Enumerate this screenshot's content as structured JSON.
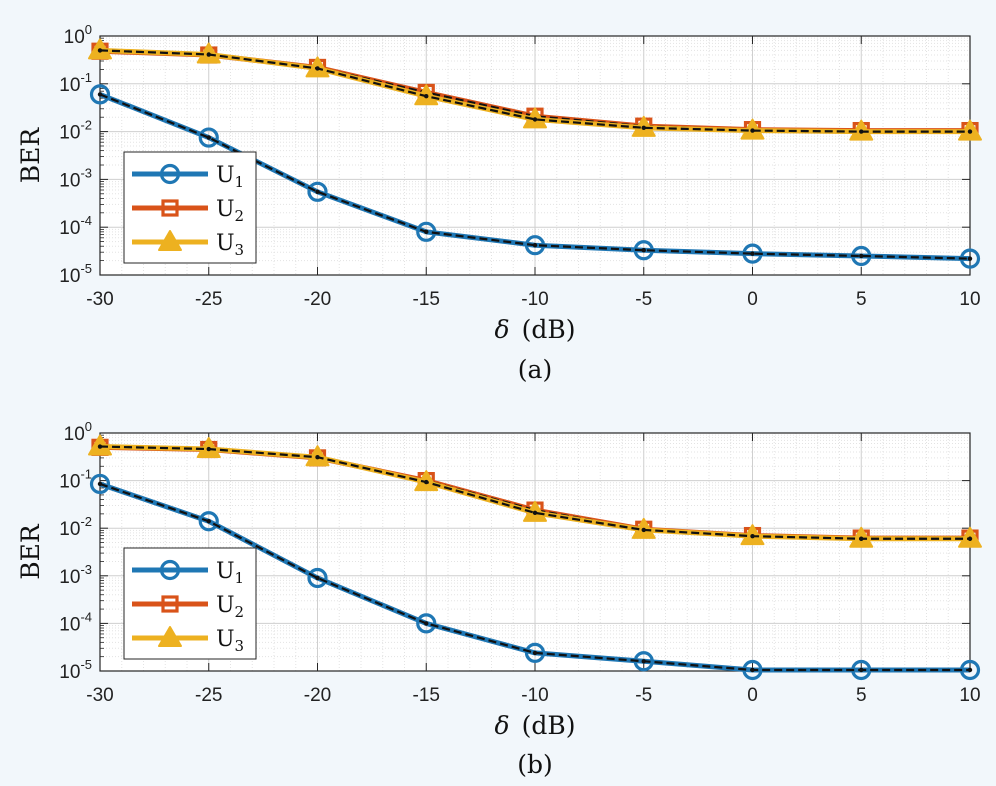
{
  "chart_data": [
    {
      "type": "line",
      "panel_label": "(a)",
      "xlabel_symbol": "δ",
      "xlabel_unit": "(dB)",
      "ylabel": "BER",
      "yscale": "log",
      "ylim": [
        1e-05,
        1
      ],
      "xlim": [
        -30,
        10
      ],
      "grid": true,
      "legend_position": "lower-left",
      "x": [
        -30,
        -25,
        -20,
        -15,
        -10,
        -5,
        0,
        5,
        10
      ],
      "x_tick_labels": [
        "-30",
        "-25",
        "-20",
        "-15",
        "-10",
        "-5",
        "0",
        "5",
        "10"
      ],
      "y_tick_labels": [
        {
          "base": "10",
          "exp": "0"
        },
        {
          "base": "10",
          "exp": "-1"
        },
        {
          "base": "10",
          "exp": "-2"
        },
        {
          "base": "10",
          "exp": "-3"
        },
        {
          "base": "10",
          "exp": "-4"
        },
        {
          "base": "10",
          "exp": "-5"
        }
      ],
      "series": [
        {
          "name": "U",
          "sub": "1",
          "marker": "circle",
          "color": "#1f77b4",
          "values": [
            0.06,
            0.0075,
            0.00055,
            8e-05,
            4.2e-05,
            3.3e-05,
            2.8e-05,
            2.5e-05,
            2.2e-05
          ]
        },
        {
          "name": "U",
          "sub": "2",
          "marker": "square",
          "color": "#d95319",
          "values": [
            0.48,
            0.4,
            0.22,
            0.066,
            0.021,
            0.013,
            0.011,
            0.0105,
            0.0105
          ]
        },
        {
          "name": "U",
          "sub": "3",
          "marker": "triangle",
          "color": "#edb120",
          "values": [
            0.5,
            0.41,
            0.21,
            0.055,
            0.018,
            0.012,
            0.0105,
            0.01,
            0.01
          ]
        }
      ]
    },
    {
      "type": "line",
      "panel_label": "(b)",
      "xlabel_symbol": "δ",
      "xlabel_unit": "(dB)",
      "ylabel": "BER",
      "yscale": "log",
      "ylim": [
        1e-05,
        1
      ],
      "xlim": [
        -30,
        10
      ],
      "grid": true,
      "legend_position": "lower-left",
      "x": [
        -30,
        -25,
        -20,
        -15,
        -10,
        -5,
        0,
        5,
        10
      ],
      "x_tick_labels": [
        "-30",
        "-25",
        "-20",
        "-15",
        "-10",
        "-5",
        "0",
        "5",
        "10"
      ],
      "y_tick_labels": [
        {
          "base": "10",
          "exp": "0"
        },
        {
          "base": "10",
          "exp": "-1"
        },
        {
          "base": "10",
          "exp": "-2"
        },
        {
          "base": "10",
          "exp": "-3"
        },
        {
          "base": "10",
          "exp": "-4"
        },
        {
          "base": "10",
          "exp": "-5"
        }
      ],
      "series": [
        {
          "name": "U",
          "sub": "1",
          "marker": "circle",
          "color": "#1f77b4",
          "values": [
            0.085,
            0.014,
            0.0009,
            0.0001,
            2.4e-05,
            1.6e-05,
            1.05e-05,
            1.05e-05,
            1.05e-05
          ]
        },
        {
          "name": "U",
          "sub": "2",
          "marker": "square",
          "color": "#d95319",
          "values": [
            0.5,
            0.45,
            0.3,
            0.1,
            0.024,
            0.0095,
            0.007,
            0.0062,
            0.0062
          ]
        },
        {
          "name": "U",
          "sub": "3",
          "marker": "triangle",
          "color": "#edb120",
          "values": [
            0.52,
            0.46,
            0.31,
            0.093,
            0.021,
            0.0092,
            0.0068,
            0.006,
            0.006
          ]
        }
      ]
    }
  ]
}
